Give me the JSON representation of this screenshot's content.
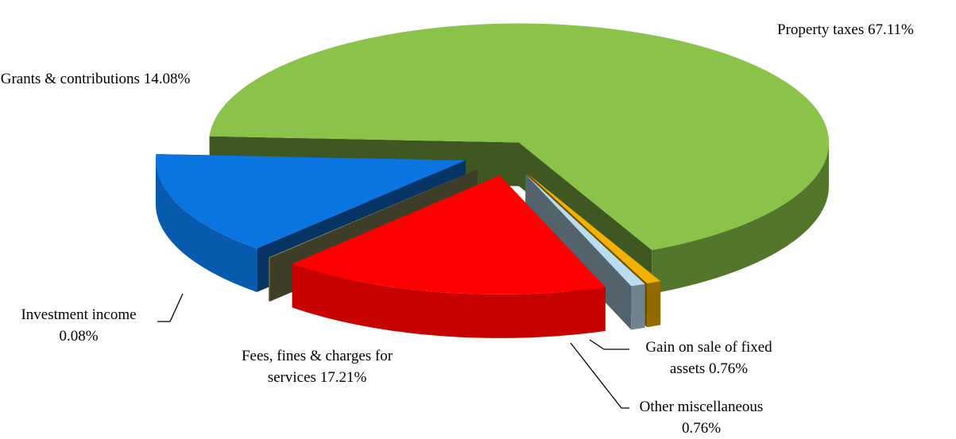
{
  "chart_data": {
    "type": "pie",
    "categories": [
      "Property taxes",
      "Gain on sale of fixed assets",
      "Other miscellaneous",
      "Fees, fines & charges for services",
      "Investment income",
      "Grants & contributions"
    ],
    "values": [
      67.11,
      0.76,
      0.76,
      17.21,
      0.08,
      14.08
    ],
    "value_labels": [
      "67.11%",
      "0.76%",
      "0.76%",
      "17.21%",
      "0.08%",
      "14.08%"
    ],
    "colors": [
      "#8bc34a",
      "#f2b000",
      "#b9dcee",
      "#ff0000",
      "#8a8a58",
      "#0a74e0"
    ]
  }
}
